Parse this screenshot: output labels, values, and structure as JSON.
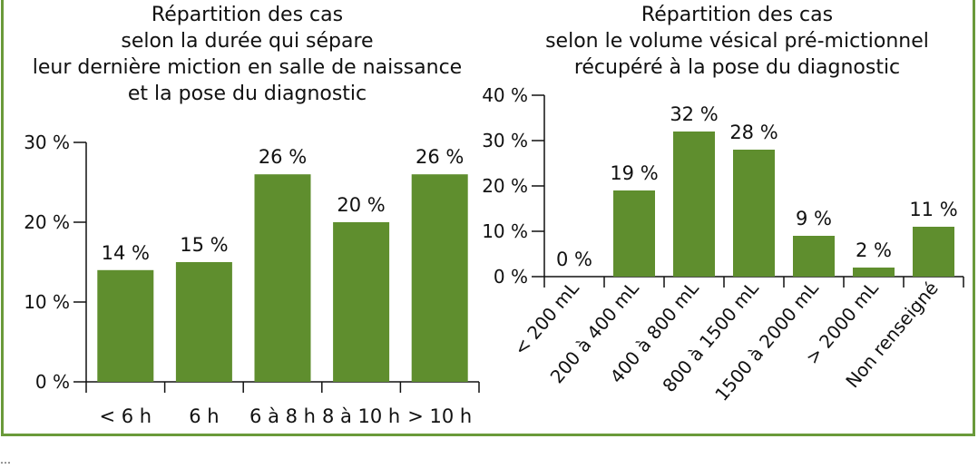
{
  "chart_data": [
    {
      "type": "bar",
      "title_lines": [
        "Répartition des cas",
        "selon la durée qui sépare",
        "leur dernière miction en salle de naissance",
        "et la pose du diagnostic"
      ],
      "categories": [
        "< 6 h",
        "6 h",
        "6 à 8 h",
        "8 à 10 h",
        "> 10 h"
      ],
      "values": [
        14,
        15,
        26,
        20,
        26
      ],
      "value_labels": [
        "14 %",
        "15 %",
        "26 %",
        "20 %",
        "26 %"
      ],
      "ylim": [
        0,
        30
      ],
      "yticks": [
        0,
        10,
        20,
        30
      ],
      "ytick_labels": [
        "0 %",
        "10 %",
        "20 %",
        "30 %"
      ],
      "bar_color": "#5f8e2e",
      "grid": false
    },
    {
      "type": "bar",
      "title_lines": [
        "Répartition des cas",
        "selon le volume vésical pré-mictionnel",
        "récupéré à la pose du diagnostic"
      ],
      "categories": [
        "< 200 mL",
        "200 à 400 mL",
        "400 à 800 mL",
        "800 à 1500 mL",
        "1500 à 2000 mL",
        "> 2000 mL",
        "Non renseigné"
      ],
      "values": [
        0,
        19,
        32,
        28,
        9,
        2,
        11
      ],
      "value_labels": [
        "0 %",
        "19 %",
        "32 %",
        "28 %",
        "9 %",
        "2 %",
        "11 %"
      ],
      "ylim": [
        0,
        40
      ],
      "yticks": [
        0,
        10,
        20,
        30,
        40
      ],
      "ytick_labels": [
        "0 %",
        "10 %",
        "20 %",
        "30 %",
        "40 %"
      ],
      "bar_color": "#5f8e2e",
      "grid": false
    }
  ],
  "colors": {
    "frame": "#6a9a3a",
    "bar": "#5f8e2e",
    "text": "#111111"
  },
  "footer_glyph": "…"
}
